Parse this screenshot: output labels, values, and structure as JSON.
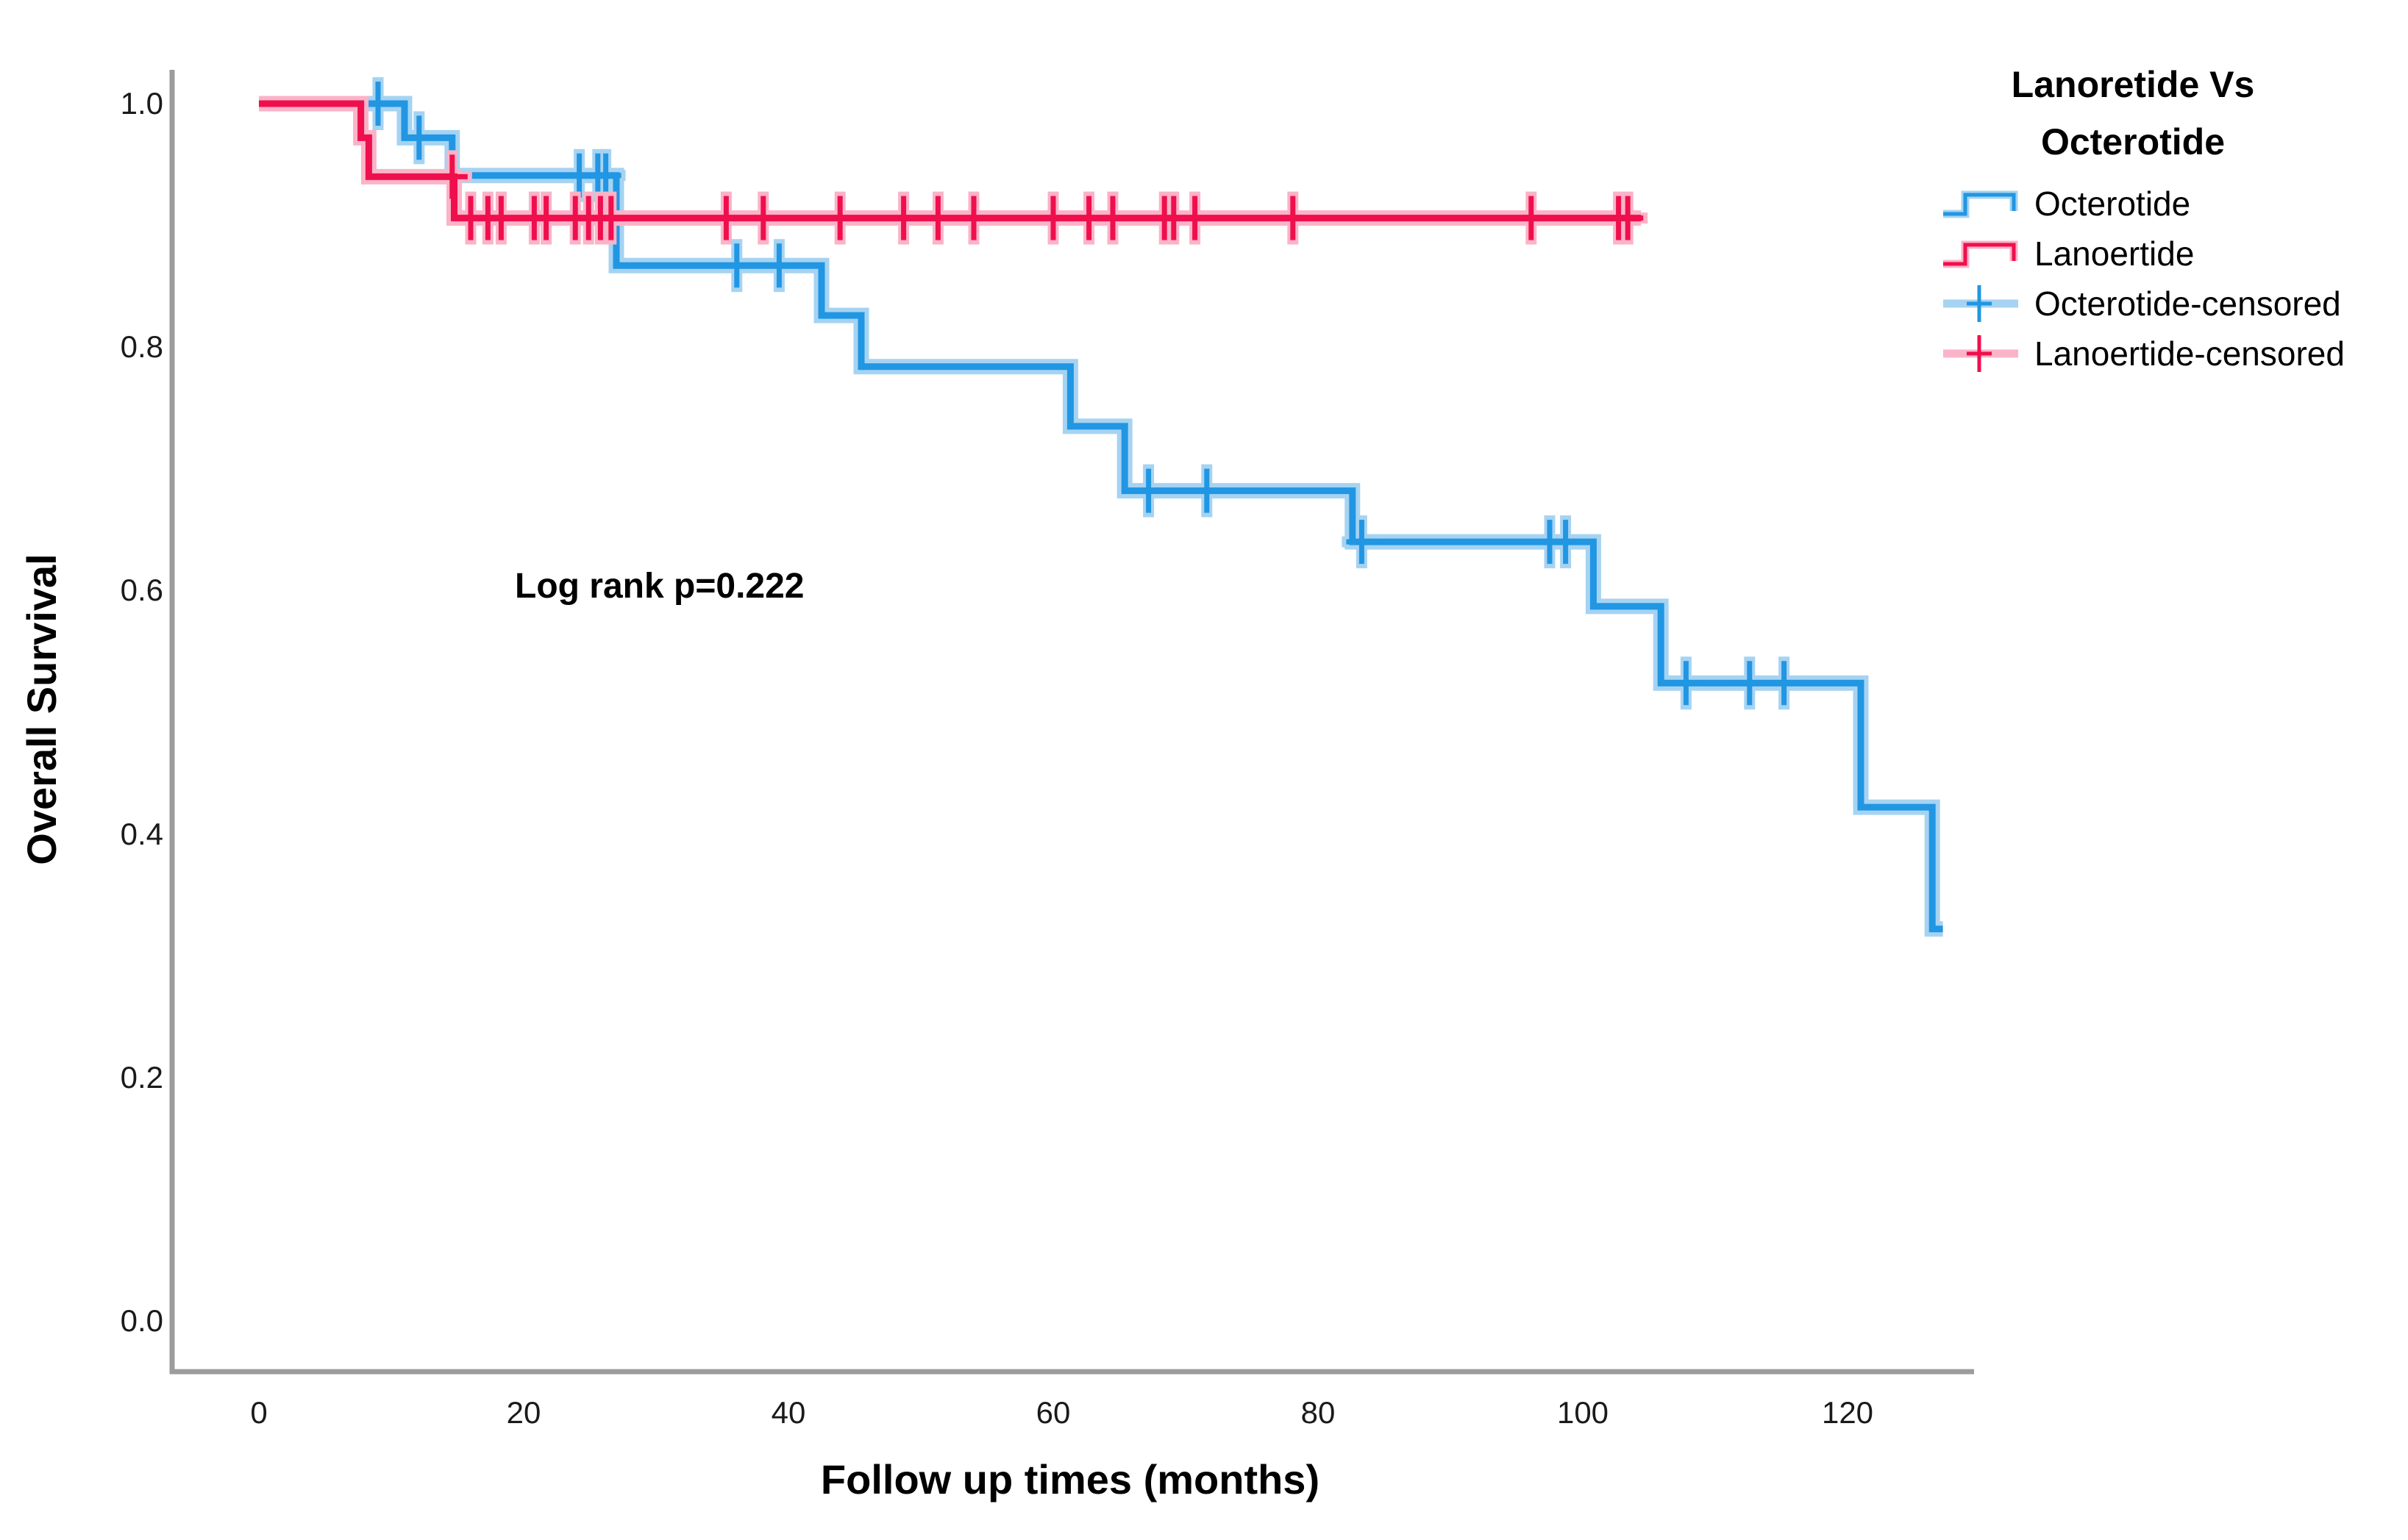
{
  "annotation": {
    "text": "Log rank p=0.222"
  },
  "axes": {
    "y_label": "Overall Survival",
    "x_label": "Follow up times (months)",
    "y_tick_labels": [
      "1.0",
      "0.8",
      "0.6",
      "0.4",
      "0.2",
      "0.0"
    ],
    "x_tick_labels": [
      "0",
      "20",
      "40",
      "60",
      "80",
      "100",
      "120"
    ]
  },
  "legend": {
    "title_line1": "Lanoretide Vs",
    "title_line2": "Octerotide",
    "entries": [
      {
        "label": "Octerotide",
        "marker": "step-line",
        "series": 0
      },
      {
        "label": "Lanoertide",
        "marker": "step-line",
        "series": 1
      },
      {
        "label": "Octerotide-censored",
        "marker": "plus",
        "series": 0
      },
      {
        "label": "Lanoertide-censored",
        "marker": "plus",
        "series": 1
      }
    ]
  },
  "colors": {
    "octerotide": "#2196E3",
    "octerotide_halo": "#A6D3F2",
    "lanoertide": "#EF0F4D",
    "lanoertide_halo": "#FBB3C8",
    "axis_line": "#9C9C9C",
    "text": "#000000"
  },
  "chart_data": {
    "type": "line",
    "subtype": "kaplan-meier-step",
    "title": "Lanoretide Vs Octerotide",
    "xlabel": "Follow up times (months)",
    "ylabel": "Overall Survival",
    "xlim": [
      -6.7,
      129.5
    ],
    "ylim": [
      -0.042,
      1.068
    ],
    "x_ticks": [
      0,
      20,
      40,
      60,
      80,
      100,
      120
    ],
    "y_ticks": [
      1.0,
      0.8,
      0.6,
      0.4,
      0.2,
      0.0
    ],
    "grid": false,
    "legend_position": "right",
    "annotation": {
      "text": "Log rank p=0.222",
      "x": 19.3,
      "y": 0.6
    },
    "series": [
      {
        "name": "Octerotide",
        "color": "#2196E3",
        "halo_color": "#A6D3F2",
        "end_x": 127.2,
        "steps": [
          [
            0,
            1.0
          ],
          [
            11,
            0.972
          ],
          [
            14.6,
            0.941
          ],
          [
            27,
            0.867
          ],
          [
            42.5,
            0.826
          ],
          [
            45.5,
            0.784
          ],
          [
            61.3,
            0.735
          ],
          [
            65.4,
            0.682
          ],
          [
            82.6,
            0.64
          ],
          [
            100.8,
            0.587
          ],
          [
            105.9,
            0.524
          ],
          [
            121,
            0.422
          ],
          [
            126.4,
            0.322
          ]
        ],
        "censored": [
          [
            9,
            1.0
          ],
          [
            12.1,
            0.972
          ],
          [
            24.2,
            0.941
          ],
          [
            25.6,
            0.941
          ],
          [
            26.2,
            0.941
          ],
          [
            36.1,
            0.867
          ],
          [
            39.3,
            0.867
          ],
          [
            67.2,
            0.682
          ],
          [
            71.6,
            0.682
          ],
          [
            83.3,
            0.64
          ],
          [
            97.5,
            0.64
          ],
          [
            98.7,
            0.64
          ],
          [
            107.8,
            0.524
          ],
          [
            112.6,
            0.524
          ],
          [
            115.2,
            0.524
          ]
        ]
      },
      {
        "name": "Lanoertide",
        "color": "#EF0F4D",
        "halo_color": "#FBB3C8",
        "end_x": 104.4,
        "steps": [
          [
            0,
            1.0
          ],
          [
            7.7,
            0.972
          ],
          [
            8.3,
            0.94
          ],
          [
            14.75,
            0.906
          ]
        ],
        "censored": [
          [
            14.6,
            0.94
          ],
          [
            16.0,
            0.906
          ],
          [
            17.3,
            0.906
          ],
          [
            18.3,
            0.906
          ],
          [
            20.8,
            0.906
          ],
          [
            21.7,
            0.906
          ],
          [
            23.9,
            0.906
          ],
          [
            24.9,
            0.906
          ],
          [
            25.8,
            0.906
          ],
          [
            26.6,
            0.906
          ],
          [
            35.3,
            0.906
          ],
          [
            38.1,
            0.906
          ],
          [
            43.9,
            0.906
          ],
          [
            48.7,
            0.906
          ],
          [
            51.3,
            0.906
          ],
          [
            54.0,
            0.906
          ],
          [
            60.0,
            0.906
          ],
          [
            62.7,
            0.906
          ],
          [
            64.5,
            0.906
          ],
          [
            68.4,
            0.906
          ],
          [
            69.1,
            0.906
          ],
          [
            70.7,
            0.906
          ],
          [
            78.1,
            0.906
          ],
          [
            96.1,
            0.906
          ],
          [
            102.7,
            0.906
          ],
          [
            103.4,
            0.906
          ]
        ]
      }
    ]
  }
}
